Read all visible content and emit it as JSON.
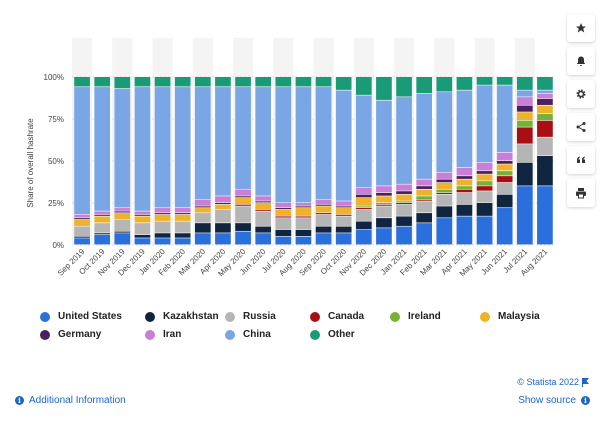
{
  "chart_data": {
    "type": "bar",
    "stacked": true,
    "ylabel": "Share of overall hashrate",
    "yticks": [
      "0%",
      "25%",
      "50%",
      "75%",
      "100%"
    ],
    "ylim": [
      0,
      100
    ],
    "grid": true,
    "legend_position": "bottom",
    "categories": [
      "Sep 2019",
      "Oct 2019",
      "Nov 2019",
      "Dec 2019",
      "Jan 2020",
      "Feb 2020",
      "Mar 2020",
      "Apr 2020",
      "May 2020",
      "Jun 2020",
      "Jul 2020",
      "Aug 2020",
      "Sep 2020",
      "Oct 2020",
      "Nov 2020",
      "Dec 2020",
      "Jan 2021",
      "Feb 2021",
      "Mar 2021",
      "Apr 2021",
      "May 2021",
      "Jun 2021",
      "Jul 2021",
      "Aug 2021"
    ],
    "x_labels_shown": [
      "Sep 2019",
      "Oct 2019",
      "Nov 2019",
      "Dec 2019",
      "Jan 2020",
      "Feb 2020",
      "Mar 2020",
      "Apr 2020",
      "May 2020",
      "Jun 2020",
      "Jul 2020",
      "Aug 2020",
      "Sep 2020",
      "Oct 2020",
      "Nov 2020",
      "Dec 2020",
      "Jan 2021",
      "Feb 2021",
      "Mar 2021",
      "Apr 2021",
      "May 2021",
      "Jun 2021",
      "Jul 2021",
      "Aug 2021"
    ],
    "series": [
      {
        "name": "United States",
        "color": "#2b6fdc",
        "values": [
          4,
          6,
          7,
          4,
          4,
          4,
          7,
          7,
          8,
          7,
          5,
          5,
          7,
          7,
          9,
          10,
          11,
          13,
          16,
          17,
          17,
          22,
          35,
          35
        ]
      },
      {
        "name": "Kazakhstan",
        "color": "#0f2540",
        "values": [
          1,
          1,
          1,
          2,
          3,
          3,
          6,
          6,
          5,
          4,
          4,
          4,
          4,
          4,
          5,
          6,
          6,
          6,
          7,
          7,
          8,
          8,
          14,
          18
        ]
      },
      {
        "name": "Russia",
        "color": "#b5b5b5",
        "values": [
          6,
          6,
          7,
          7,
          7,
          7,
          6,
          8,
          10,
          9,
          7,
          7,
          7,
          6,
          7,
          7,
          7,
          7,
          7,
          7,
          7,
          7,
          11,
          11
        ]
      },
      {
        "name": "Canada",
        "color": "#a80f15",
        "values": [
          0,
          0,
          0,
          0,
          0,
          0,
          0,
          0,
          1,
          1,
          1,
          1,
          1,
          1,
          1,
          1,
          1,
          1,
          1,
          2,
          3,
          4,
          10,
          10
        ]
      },
      {
        "name": "Ireland",
        "color": "#76b335",
        "values": [
          0,
          0,
          0,
          0,
          0,
          0,
          0,
          0,
          0,
          0,
          0,
          0,
          0,
          0,
          1,
          1,
          1,
          2,
          2,
          2,
          3,
          3,
          4,
          4
        ]
      },
      {
        "name": "Malaysia",
        "color": "#eeb22b",
        "values": [
          4,
          4,
          4,
          4,
          4,
          4,
          3,
          3,
          4,
          4,
          4,
          5,
          4,
          4,
          5,
          4,
          4,
          4,
          4,
          4,
          4,
          4,
          5,
          5
        ]
      },
      {
        "name": "Germany",
        "color": "#4b205f",
        "values": [
          1,
          1,
          1,
          1,
          1,
          1,
          1,
          1,
          1,
          1,
          1,
          1,
          1,
          1,
          2,
          2,
          2,
          2,
          2,
          2,
          2,
          2,
          4,
          4
        ]
      },
      {
        "name": "Iran",
        "color": "#c97fd8",
        "values": [
          2,
          2,
          2,
          2,
          3,
          3,
          4,
          4,
          4,
          3,
          3,
          2,
          3,
          3,
          4,
          4,
          4,
          4,
          4,
          5,
          5,
          5,
          5,
          3
        ]
      },
      {
        "name": "China",
        "color": "#7aa6e6",
        "values": [
          76,
          74,
          71,
          74,
          72,
          72,
          67,
          65,
          61,
          65,
          69,
          69,
          67,
          66,
          55,
          51,
          52,
          51,
          48,
          46,
          46,
          40,
          4,
          2
        ]
      },
      {
        "name": "Other",
        "color": "#1a9b77",
        "values": [
          6,
          6,
          7,
          6,
          6,
          6,
          6,
          6,
          6,
          6,
          6,
          6,
          6,
          8,
          11,
          14,
          12,
          10,
          9,
          8,
          5,
          5,
          8,
          8
        ]
      }
    ]
  },
  "legend_order": [
    "United States",
    "Kazakhstan",
    "Russia",
    "Canada",
    "Ireland",
    "Malaysia",
    "Germany",
    "Iran",
    "China",
    "Other"
  ],
  "sidebar": {
    "icons": [
      "star-icon",
      "bell-icon",
      "gear-icon",
      "share-icon",
      "quote-icon",
      "print-icon"
    ]
  },
  "footer": {
    "copyright": "© Statista 2022",
    "additional_info": "Additional Information",
    "show_source": "Show source"
  },
  "colors": {
    "link": "#1a66c9",
    "band": "#f4f4f4"
  }
}
